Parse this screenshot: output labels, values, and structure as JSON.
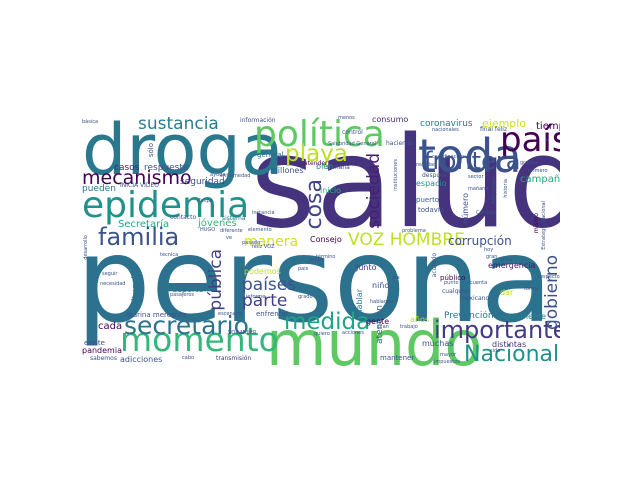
{
  "words": [
    {
      "text": "salud",
      "color": "#46337e"
    },
    {
      "text": "persona",
      "color": "#2c728e"
    },
    {
      "text": "droga",
      "color": "#2a788e"
    },
    {
      "text": "mundo",
      "color": "#5ec962"
    },
    {
      "text": "política",
      "color": "#5ec962"
    },
    {
      "text": "toda",
      "color": "#3b528b"
    },
    {
      "text": "epidemia",
      "color": "#21918c"
    },
    {
      "text": "país",
      "color": "#440154"
    },
    {
      "text": "momento",
      "color": "#35b779"
    },
    {
      "text": "familia",
      "color": "#3b528b"
    },
    {
      "text": "secretario",
      "color": "#2c728e"
    },
    {
      "text": "frontera",
      "color": "#3b528b"
    },
    {
      "text": "medida",
      "color": "#20a386"
    },
    {
      "text": "importante",
      "color": "#443983"
    },
    {
      "text": "Nacional",
      "color": "#21918c"
    },
    {
      "text": "sustancia",
      "color": "#287d8e"
    },
    {
      "text": "playa",
      "color": "#bddf26"
    },
    {
      "text": "mecanismo",
      "color": "#440154"
    },
    {
      "text": "VOZ HOMBRE",
      "color": "#bddf26"
    },
    {
      "text": "manera",
      "color": "#d2e21b"
    },
    {
      "text": "parte",
      "color": "#433e85"
    },
    {
      "text": "países",
      "color": "#3b528b"
    },
    {
      "text": "pública",
      "color": "#433e85"
    },
    {
      "text": "cosa",
      "color": "#414487"
    },
    {
      "text": "sociedad",
      "color": "#481f70"
    },
    {
      "text": "gobierno",
      "color": "#3b528b"
    },
    {
      "text": "corrupción",
      "color": "#3b528b"
    },
    {
      "text": "campaña",
      "color": "#23a983"
    },
    {
      "text": "ejemplo",
      "color": "#d0e11c"
    },
    {
      "text": "tiempo",
      "color": "#440154"
    },
    {
      "text": "coronavirus",
      "color": "#2a788e"
    },
    {
      "text": "consumo",
      "color": "#482878"
    },
    {
      "text": "casos",
      "color": "#481f70"
    },
    {
      "text": "respuesta",
      "color": "#3b528b"
    },
    {
      "text": "seguridad",
      "color": "#3b528b"
    },
    {
      "text": "pueden",
      "color": "#2a788e"
    },
    {
      "text": "Secretaría",
      "color": "#22a884"
    },
    {
      "text": "jóvenes",
      "color": "#35b779"
    },
    {
      "text": "situación",
      "color": "#2c728e"
    },
    {
      "text": "deporte",
      "color": "#2a788e"
    },
    {
      "text": "cada",
      "color": "#440154"
    },
    {
      "text": "pandemia",
      "color": "#440154"
    },
    {
      "text": "adicciones",
      "color": "#3b528b"
    },
    {
      "text": "muchas",
      "color": "#3b528b"
    },
    {
      "text": "distintas",
      "color": "#46337e"
    },
    {
      "text": "Prevención",
      "color": "#2c728e"
    },
    {
      "text": "solamente",
      "color": "#26828e"
    },
    {
      "text": "emergencia",
      "color": "#481a6c"
    },
    {
      "text": "atención",
      "color": "#31688e"
    },
    {
      "text": "años",
      "color": "#bddf26"
    },
    {
      "text": "gente",
      "color": "#440154"
    },
    {
      "text": "niño",
      "color": "#3b528b"
    },
    {
      "text": "hablar",
      "color": "#2a788e"
    },
    {
      "text": "Junto",
      "color": "#443983"
    },
    {
      "text": "podemos",
      "color": "#bddf26"
    },
    {
      "text": "millones",
      "color": "#3b528b"
    },
    {
      "text": "bien",
      "color": "#21918c"
    },
    {
      "text": "inicio",
      "color": "#2fb47c"
    },
    {
      "text": "espacio",
      "color": "#21918c"
    },
    {
      "text": "puerto",
      "color": "#31688e"
    },
    {
      "text": "todavía",
      "color": "#3b528b"
    },
    {
      "text": "número",
      "color": "#3b528b"
    },
    {
      "text": "Consejo",
      "color": "#440154"
    },
    {
      "text": "dar",
      "color": "#b5de2b"
    },
    {
      "text": "mexicano",
      "color": "#3b528b"
    },
    {
      "text": "público",
      "color": "#440154"
    },
    {
      "text": "mismo",
      "color": "#440154"
    },
    {
      "text": "marina mercante",
      "color": "#3b528b"
    },
    {
      "text": "existe",
      "color": "#3b528b"
    },
    {
      "text": "sabemos",
      "color": "#3b528b"
    },
    {
      "text": "enfrentar",
      "color": "#3b528b"
    },
    {
      "text": "mantener",
      "color": "#3b528b"
    },
    {
      "text": "transmisión",
      "color": "#46337e"
    },
    {
      "text": "general",
      "color": "#31688e"
    },
    {
      "text": "control",
      "color": "#3b528b"
    },
    {
      "text": "haciendo",
      "color": "#3b528b"
    },
    {
      "text": "semana",
      "color": "#3b528b"
    },
    {
      "text": "atender",
      "color": "#440154"
    },
    {
      "text": "acuerdo",
      "color": "#3b528b"
    },
    {
      "text": "sólo",
      "color": "#3b528b"
    },
    {
      "text": "contacto",
      "color": "#3b528b"
    },
    {
      "text": "sistema",
      "color": "#2c728e"
    },
    {
      "text": "INICIA VIDEO",
      "color": "#3b528b"
    },
    {
      "text": "información",
      "color": "#3b528b"
    },
    {
      "text": "después",
      "color": "#3b528b"
    },
    {
      "text": "coordinación",
      "color": "#3b528b"
    },
    {
      "text": "realidad",
      "color": "#3b528b"
    },
    {
      "text": "mañana",
      "color": "#3b528b"
    },
    {
      "text": "cualquier",
      "color": "#3b528b"
    },
    {
      "text": "final feliz",
      "color": "#3b528b"
    },
    {
      "text": "nacionales",
      "color": "#3b528b"
    },
    {
      "text": "básica",
      "color": "#3b528b"
    },
    {
      "text": "problema",
      "color": "#3b528b"
    },
    {
      "text": "hoy",
      "color": "#3b528b"
    },
    {
      "text": "elemento",
      "color": "#3b528b"
    },
    {
      "text": "instancia",
      "color": "#3b528b"
    },
    {
      "text": "diferente",
      "color": "#3b528b"
    },
    {
      "text": "escenario",
      "color": "#3b528b"
    },
    {
      "text": "VOZ MUJER",
      "color": "#3b528b"
    },
    {
      "text": "HUGO",
      "color": "#3b528b"
    },
    {
      "text": "grado",
      "color": "#3b528b"
    },
    {
      "text": "informe",
      "color": "#3b528b"
    },
    {
      "text": "quiero",
      "color": "#3b528b"
    },
    {
      "text": "acciones",
      "color": "#3b528b"
    },
    {
      "text": "trabajo",
      "color": "#3b528b"
    },
    {
      "text": "hablando",
      "color": "#3b528b"
    },
    {
      "text": "plan",
      "color": "#3b528b"
    },
    {
      "text": "mayor",
      "color": "#3b528b"
    },
    {
      "text": "impuestos",
      "color": "#3b528b"
    },
    {
      "text": "sido",
      "color": "#3b528b"
    },
    {
      "text": "virus",
      "color": "#3b528b"
    },
    {
      "text": "gracias",
      "color": "#3b528b"
    },
    {
      "text": "tomar",
      "color": "#3b528b"
    },
    {
      "text": "respecto",
      "color": "#3b528b"
    },
    {
      "text": "seguir",
      "color": "#3b528b"
    },
    {
      "text": "necesidad",
      "color": "#3b528b"
    },
    {
      "text": "técnica",
      "color": "#3b528b"
    },
    {
      "text": "pasajeros",
      "color": "#3b528b"
    },
    {
      "text": "cabo",
      "color": "#3b528b"
    },
    {
      "text": "ayuda",
      "color": "#3b528b"
    },
    {
      "text": "padre",
      "color": "#3b528b"
    },
    {
      "text": "desarrollo",
      "color": "#3b528b"
    },
    {
      "text": "enfermedad",
      "color": "#3b528b"
    },
    {
      "text": "Salubridad General",
      "color": "#3b528b"
    },
    {
      "text": "menos",
      "color": "#3b528b"
    },
    {
      "text": "feliz VOZ",
      "color": "#3b528b"
    },
    {
      "text": "sector",
      "color": "#3b528b"
    },
    {
      "text": "primero",
      "color": "#3b528b"
    },
    {
      "text": "historia",
      "color": "#3b528b"
    },
    {
      "text": "gran",
      "color": "#3b528b"
    },
    {
      "text": "Adicciones",
      "color": "#3b528b"
    },
    {
      "text": "Estrategia Nacional",
      "color": "#3b528b"
    },
    {
      "text": "instituciones",
      "color": "#3b528b"
    },
    {
      "text": "Conadic",
      "color": "#3b528b"
    },
    {
      "text": "Felipe",
      "color": "#3b528b"
    },
    {
      "text": "punto",
      "color": "#3b528b"
    },
    {
      "text": "término",
      "color": "#3b528b"
    },
    {
      "text": "cuenta",
      "color": "#3b528b"
    },
    {
      "text": "pasado",
      "color": "#3b528b"
    },
    {
      "text": "ir",
      "color": "#3b528b"
    },
    {
      "text": "ve",
      "color": "#3b528b"
    },
    {
      "text": "día",
      "color": "#3b528b"
    },
    {
      "text": "pais",
      "color": "#3b528b"
    }
  ]
}
